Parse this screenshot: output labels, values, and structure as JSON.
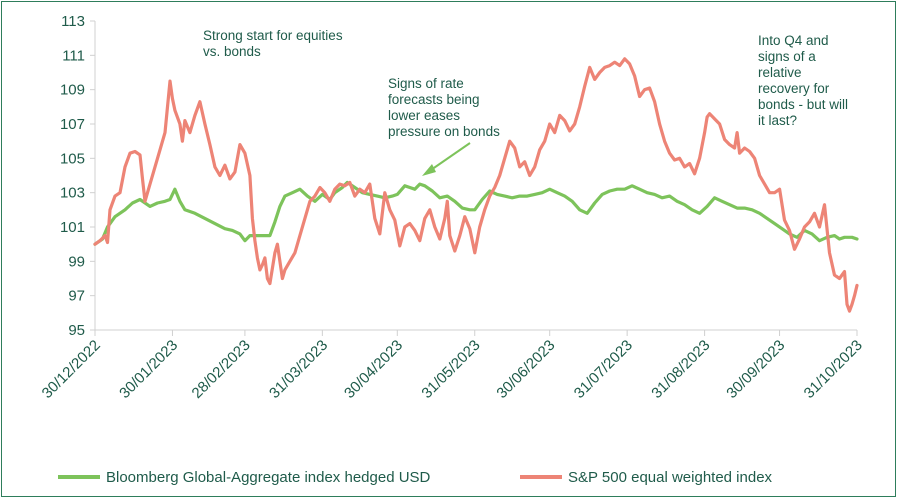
{
  "chart_data": {
    "type": "line",
    "title": "",
    "xlabel": "",
    "ylabel": "",
    "ylim": [
      95,
      113
    ],
    "yticks": [
      95,
      97,
      99,
      101,
      103,
      105,
      107,
      109,
      111,
      113
    ],
    "x_date_range": [
      "2022-12-30",
      "2023-10-31"
    ],
    "xtick_labels": [
      "30/12/2022",
      "30/01/2023",
      "28/02/2023",
      "31/03/2023",
      "30/04/2023",
      "31/05/2023",
      "30/06/2023",
      "31/07/2023",
      "31/08/2023",
      "30/09/2023",
      "31/10/2023"
    ],
    "xtick_days": [
      0,
      31,
      60,
      91,
      121,
      152,
      182,
      213,
      244,
      274,
      305
    ],
    "series": [
      {
        "name": "Bloomberg Global-Aggregate index hedged USD",
        "color": "#7dc35b",
        "points": [
          [
            0,
            100.0
          ],
          [
            3,
            100.3
          ],
          [
            5,
            101.0
          ],
          [
            8,
            101.6
          ],
          [
            12,
            102.0
          ],
          [
            15,
            102.4
          ],
          [
            18,
            102.6
          ],
          [
            22,
            102.2
          ],
          [
            25,
            102.4
          ],
          [
            28,
            102.5
          ],
          [
            30,
            102.6
          ],
          [
            32,
            103.2
          ],
          [
            34,
            102.5
          ],
          [
            36,
            102.0
          ],
          [
            40,
            101.8
          ],
          [
            44,
            101.5
          ],
          [
            48,
            101.2
          ],
          [
            52,
            100.9
          ],
          [
            55,
            100.8
          ],
          [
            58,
            100.6
          ],
          [
            60,
            100.2
          ],
          [
            62,
            100.5
          ],
          [
            66,
            100.5
          ],
          [
            70,
            100.5
          ],
          [
            72,
            101.3
          ],
          [
            74,
            102.2
          ],
          [
            76,
            102.8
          ],
          [
            79,
            103.0
          ],
          [
            82,
            103.2
          ],
          [
            85,
            102.8
          ],
          [
            88,
            102.5
          ],
          [
            91,
            102.9
          ],
          [
            94,
            102.6
          ],
          [
            96,
            103.0
          ],
          [
            99,
            103.3
          ],
          [
            101,
            103.6
          ],
          [
            104,
            103.3
          ],
          [
            107,
            103.0
          ],
          [
            110,
            102.9
          ],
          [
            113,
            102.8
          ],
          [
            116,
            102.7
          ],
          [
            119,
            102.8
          ],
          [
            121,
            102.9
          ],
          [
            124,
            103.4
          ],
          [
            126,
            103.3
          ],
          [
            128,
            103.2
          ],
          [
            130,
            103.5
          ],
          [
            132,
            103.4
          ],
          [
            135,
            103.1
          ],
          [
            138,
            102.7
          ],
          [
            141,
            102.8
          ],
          [
            144,
            102.5
          ],
          [
            147,
            102.1
          ],
          [
            150,
            102.0
          ],
          [
            152,
            102.0
          ],
          [
            155,
            102.6
          ],
          [
            158,
            103.1
          ],
          [
            161,
            102.9
          ],
          [
            164,
            102.8
          ],
          [
            167,
            102.7
          ],
          [
            170,
            102.8
          ],
          [
            173,
            102.8
          ],
          [
            176,
            102.9
          ],
          [
            179,
            103.0
          ],
          [
            182,
            103.2
          ],
          [
            185,
            103.0
          ],
          [
            188,
            102.8
          ],
          [
            191,
            102.5
          ],
          [
            194,
            102.0
          ],
          [
            197,
            101.8
          ],
          [
            200,
            102.4
          ],
          [
            203,
            102.9
          ],
          [
            206,
            103.1
          ],
          [
            209,
            103.2
          ],
          [
            212,
            103.2
          ],
          [
            215,
            103.4
          ],
          [
            218,
            103.2
          ],
          [
            221,
            103.0
          ],
          [
            224,
            102.9
          ],
          [
            227,
            102.7
          ],
          [
            230,
            102.8
          ],
          [
            233,
            102.5
          ],
          [
            236,
            102.3
          ],
          [
            239,
            102.0
          ],
          [
            242,
            101.8
          ],
          [
            245,
            102.2
          ],
          [
            248,
            102.7
          ],
          [
            251,
            102.5
          ],
          [
            254,
            102.3
          ],
          [
            257,
            102.1
          ],
          [
            260,
            102.1
          ],
          [
            263,
            102.0
          ],
          [
            266,
            101.8
          ],
          [
            269,
            101.5
          ],
          [
            272,
            101.2
          ],
          [
            275,
            100.9
          ],
          [
            278,
            100.6
          ],
          [
            281,
            100.4
          ],
          [
            284,
            100.8
          ],
          [
            287,
            100.6
          ],
          [
            290,
            100.2
          ],
          [
            293,
            100.4
          ],
          [
            296,
            100.5
          ],
          [
            298,
            100.3
          ],
          [
            300,
            100.4
          ],
          [
            303,
            100.4
          ],
          [
            305,
            100.3
          ]
        ]
      },
      {
        "name": "S&P 500 equal weighted index",
        "color": "#ed8476",
        "points": [
          [
            0,
            100.0
          ],
          [
            2,
            100.2
          ],
          [
            4,
            100.5
          ],
          [
            5,
            100.1
          ],
          [
            6,
            102.0
          ],
          [
            8,
            102.8
          ],
          [
            10,
            103.0
          ],
          [
            12,
            104.5
          ],
          [
            14,
            105.3
          ],
          [
            16,
            105.4
          ],
          [
            18,
            105.2
          ],
          [
            19,
            103.8
          ],
          [
            20,
            102.5
          ],
          [
            22,
            103.5
          ],
          [
            24,
            104.5
          ],
          [
            26,
            105.5
          ],
          [
            28,
            106.5
          ],
          [
            29,
            108.0
          ],
          [
            30,
            109.5
          ],
          [
            31,
            108.5
          ],
          [
            32,
            107.8
          ],
          [
            34,
            107.0
          ],
          [
            35,
            106.0
          ],
          [
            36,
            107.2
          ],
          [
            38,
            106.5
          ],
          [
            40,
            107.5
          ],
          [
            42,
            108.3
          ],
          [
            44,
            107.0
          ],
          [
            46,
            105.8
          ],
          [
            48,
            104.5
          ],
          [
            50,
            104.0
          ],
          [
            52,
            104.6
          ],
          [
            54,
            103.8
          ],
          [
            56,
            104.2
          ],
          [
            58,
            105.8
          ],
          [
            60,
            105.3
          ],
          [
            62,
            104.0
          ],
          [
            63,
            101.5
          ],
          [
            64,
            100.2
          ],
          [
            65,
            99.2
          ],
          [
            66,
            98.5
          ],
          [
            67,
            98.8
          ],
          [
            68,
            99.2
          ],
          [
            69,
            98.0
          ],
          [
            70,
            97.7
          ],
          [
            71,
            98.6
          ],
          [
            72,
            99.5
          ],
          [
            73,
            100.0
          ],
          [
            74,
            99.0
          ],
          [
            75,
            98.0
          ],
          [
            76,
            98.5
          ],
          [
            78,
            99.0
          ],
          [
            80,
            99.5
          ],
          [
            82,
            100.5
          ],
          [
            84,
            101.5
          ],
          [
            86,
            102.5
          ],
          [
            88,
            102.8
          ],
          [
            90,
            103.3
          ],
          [
            92,
            103.0
          ],
          [
            94,
            102.5
          ],
          [
            96,
            103.2
          ],
          [
            98,
            103.5
          ],
          [
            100,
            103.4
          ],
          [
            102,
            103.6
          ],
          [
            104,
            102.8
          ],
          [
            106,
            103.2
          ],
          [
            108,
            103.0
          ],
          [
            110,
            103.5
          ],
          [
            112,
            101.5
          ],
          [
            114,
            100.6
          ],
          [
            116,
            103.0
          ],
          [
            118,
            102.0
          ],
          [
            120,
            101.4
          ],
          [
            122,
            99.9
          ],
          [
            124,
            101.0
          ],
          [
            126,
            101.2
          ],
          [
            128,
            100.8
          ],
          [
            130,
            100.2
          ],
          [
            132,
            101.5
          ],
          [
            134,
            102.0
          ],
          [
            136,
            101.0
          ],
          [
            138,
            100.3
          ],
          [
            140,
            101.5
          ],
          [
            141,
            102.5
          ],
          [
            142,
            100.5
          ],
          [
            144,
            99.6
          ],
          [
            146,
            100.5
          ],
          [
            148,
            101.6
          ],
          [
            150,
            100.9
          ],
          [
            152,
            99.5
          ],
          [
            154,
            101.0
          ],
          [
            156,
            102.0
          ],
          [
            158,
            102.8
          ],
          [
            160,
            103.3
          ],
          [
            162,
            104.0
          ],
          [
            164,
            105.0
          ],
          [
            166,
            106.0
          ],
          [
            168,
            105.6
          ],
          [
            170,
            104.5
          ],
          [
            172,
            104.8
          ],
          [
            174,
            104.0
          ],
          [
            176,
            104.5
          ],
          [
            178,
            105.5
          ],
          [
            180,
            106.0
          ],
          [
            182,
            107.0
          ],
          [
            184,
            106.5
          ],
          [
            186,
            107.5
          ],
          [
            188,
            107.2
          ],
          [
            190,
            106.6
          ],
          [
            192,
            107.0
          ],
          [
            194,
            108.0
          ],
          [
            196,
            109.2
          ],
          [
            198,
            110.3
          ],
          [
            200,
            109.6
          ],
          [
            202,
            110.0
          ],
          [
            204,
            110.3
          ],
          [
            206,
            110.4
          ],
          [
            208,
            110.6
          ],
          [
            210,
            110.4
          ],
          [
            212,
            110.8
          ],
          [
            214,
            110.5
          ],
          [
            216,
            109.8
          ],
          [
            218,
            108.6
          ],
          [
            220,
            109.0
          ],
          [
            222,
            109.1
          ],
          [
            224,
            108.3
          ],
          [
            226,
            107.0
          ],
          [
            228,
            106.0
          ],
          [
            230,
            105.3
          ],
          [
            232,
            104.9
          ],
          [
            234,
            105.0
          ],
          [
            236,
            104.5
          ],
          [
            238,
            104.7
          ],
          [
            240,
            104.1
          ],
          [
            242,
            105.0
          ],
          [
            244,
            106.5
          ],
          [
            245,
            107.4
          ],
          [
            246,
            107.6
          ],
          [
            248,
            107.3
          ],
          [
            250,
            107.0
          ],
          [
            252,
            106.1
          ],
          [
            254,
            105.8
          ],
          [
            256,
            105.6
          ],
          [
            257,
            106.5
          ],
          [
            258,
            105.3
          ],
          [
            260,
            105.6
          ],
          [
            262,
            105.4
          ],
          [
            264,
            105.0
          ],
          [
            266,
            104.0
          ],
          [
            268,
            103.5
          ],
          [
            270,
            103.0
          ],
          [
            272,
            103.0
          ],
          [
            274,
            103.2
          ],
          [
            276,
            101.4
          ],
          [
            278,
            100.8
          ],
          [
            280,
            99.7
          ],
          [
            282,
            100.3
          ],
          [
            284,
            101.0
          ],
          [
            286,
            101.3
          ],
          [
            288,
            101.8
          ],
          [
            290,
            101.0
          ],
          [
            292,
            102.3
          ],
          [
            294,
            99.5
          ],
          [
            296,
            98.2
          ],
          [
            298,
            98.0
          ],
          [
            300,
            98.4
          ],
          [
            301,
            96.5
          ],
          [
            302,
            96.1
          ],
          [
            303,
            96.5
          ],
          [
            304,
            97.0
          ],
          [
            305,
            97.6
          ]
        ]
      }
    ],
    "annotations": [
      {
        "lines": [
          "Strong start for equities",
          "vs. bonds"
        ]
      },
      {
        "lines": [
          "Signs of rate",
          "forecasts being",
          "lower eases",
          "pressure on bonds"
        ]
      },
      {
        "lines": [
          "Into Q4 and",
          "signs of a",
          "relative",
          "recovery for",
          "bonds - but will",
          "it last?"
        ]
      }
    ],
    "legend": {
      "position": "bottom",
      "entries": [
        "Bloomberg Global-Aggregate index hedged USD",
        "S&P 500 equal weighted index"
      ]
    },
    "colors": {
      "axis": "#d0d0d0",
      "text": "#1f5b4a",
      "frame": "#2e7d5b",
      "arrow": "#7dc35b"
    }
  }
}
